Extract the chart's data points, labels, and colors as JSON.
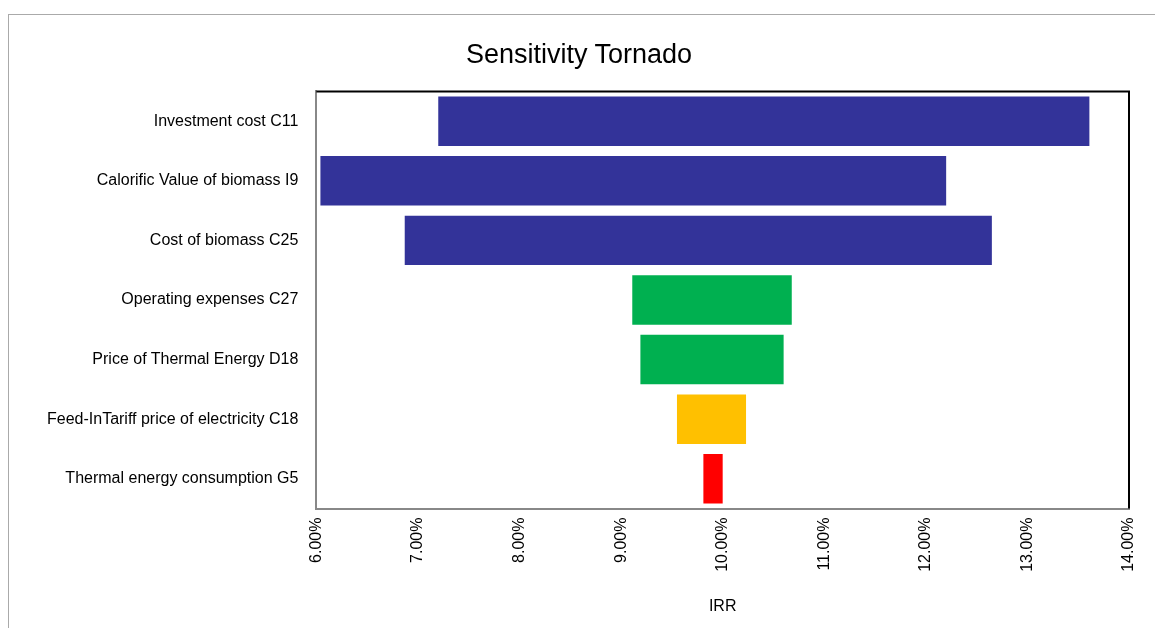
{
  "chart_data": {
    "type": "bar",
    "orientation": "horizontal",
    "title": "Sensitivity Tornado",
    "xlabel": "IRR",
    "categories": [
      "Investment cost C11",
      "Calorific Value of biomass I9",
      "Cost of biomass C25",
      "Operating expenses C27",
      "Price of Thermal Energy D18",
      "Feed-InTariff price of electricity C18",
      "Thermal energy consumption G5"
    ],
    "base": [
      7.2,
      6.04,
      6.87,
      9.11,
      9.19,
      9.55,
      9.81
    ],
    "values": [
      6.41,
      6.16,
      5.78,
      1.57,
      1.41,
      0.68,
      0.19
    ],
    "colors": [
      "#333399",
      "#333399",
      "#333399",
      "#00b050",
      "#00b050",
      "#ffc000",
      "#ff0000"
    ],
    "xlim": [
      6,
      14
    ],
    "xticks": [
      {
        "value": 6,
        "label": "6.00%"
      },
      {
        "value": 7,
        "label": "7.00%"
      },
      {
        "value": 8,
        "label": "8.00%"
      },
      {
        "value": 9,
        "label": "9.00%"
      },
      {
        "value": 10,
        "label": "10.00%"
      },
      {
        "value": 11,
        "label": "11.00%"
      },
      {
        "value": 12,
        "label": "12.00%"
      },
      {
        "value": 13,
        "label": "13.00%"
      },
      {
        "value": 14,
        "label": "14.00%"
      }
    ],
    "grid": false,
    "legend": false
  }
}
